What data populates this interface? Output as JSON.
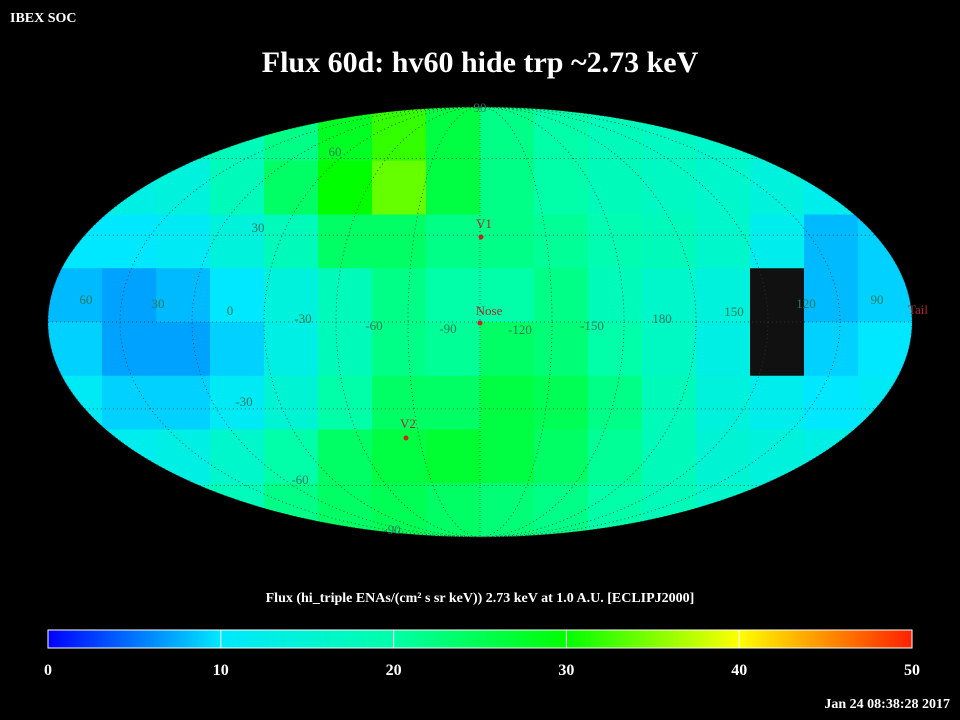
{
  "header": {
    "source": "IBEX SOC",
    "title": "Flux   60d: hv60 hide trp ~2.73 keV",
    "timestamp": "Jan 24 08:38:28 2017"
  },
  "map": {
    "flux": [
      [
        15,
        15,
        16,
        18,
        22,
        28,
        32,
        26,
        22,
        20,
        18,
        17,
        16,
        15,
        14,
        14
      ],
      [
        12,
        13,
        14,
        18,
        24,
        30,
        34,
        26,
        22,
        20,
        18,
        17,
        16,
        14,
        12,
        12
      ],
      [
        10,
        10,
        11,
        14,
        18,
        24,
        24,
        22,
        22,
        21,
        19,
        18,
        16,
        12,
        8,
        9
      ],
      [
        8,
        7,
        8,
        10,
        14,
        18,
        22,
        20,
        20,
        22,
        18,
        16,
        14,
        null,
        8,
        9
      ],
      [
        9,
        7,
        7,
        9,
        13,
        18,
        22,
        21,
        24,
        23,
        20,
        17,
        13,
        null,
        9,
        10
      ],
      [
        11,
        9,
        9,
        11,
        15,
        20,
        24,
        24,
        26,
        25,
        22,
        18,
        14,
        12,
        10,
        11
      ],
      [
        13,
        12,
        13,
        16,
        20,
        24,
        26,
        27,
        26,
        24,
        21,
        18,
        15,
        14,
        13,
        14
      ],
      [
        15,
        15,
        16,
        18,
        22,
        24,
        25,
        24,
        23,
        22,
        20,
        18,
        16,
        15,
        15,
        15
      ]
    ],
    "colormap": [
      "#0000ff",
      "#00e8ff",
      "#00ffa8",
      "#00ff00",
      "#ffff00",
      "#ff2000"
    ],
    "lon_labels": [
      "60",
      "30",
      "0",
      "-30",
      "-60",
      "-90",
      "-120",
      "-150",
      "180",
      "150",
      "120",
      "90"
    ],
    "lat_labels": [
      "90",
      "60",
      "30",
      "-30",
      "-60",
      "-90"
    ],
    "markers": [
      "V1",
      "Nose",
      "V2",
      "Tail"
    ]
  },
  "colorbar": {
    "label": "Flux (hi_triple ENAs/(cm² s sr keV))  2.73 keV at 1.0 A.U. [ECLIPJ2000]",
    "clim": [
      0,
      50
    ],
    "ticks": [
      0,
      10,
      20,
      30,
      40,
      50
    ]
  }
}
